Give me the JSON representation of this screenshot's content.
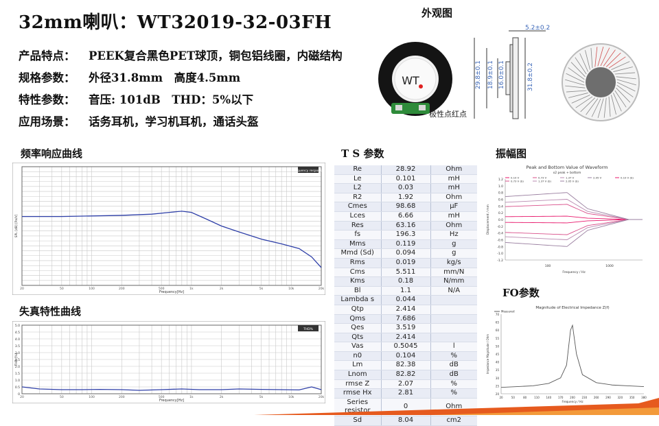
{
  "title": "32mm喇叭：WT32019-32-03FH",
  "specs": [
    {
      "label": "产品特点：",
      "value": "PEEK复合黑色PET球顶，铜包铝线圈，内磁结构"
    },
    {
      "label": "规格参数：",
      "value": "外径31.8mm　高度4.5mm"
    },
    {
      "label": "特性参数：",
      "value": "音压: 101dB　THD：5%以下"
    },
    {
      "label": "应用场景：",
      "value": "话务耳机，学习机耳机，通话头盔"
    }
  ],
  "appearance": {
    "title": "外观图",
    "logo_text": "WT",
    "polarity_note": "极性点红点",
    "dims": [
      "5.2±0.2",
      "29.8±0.1",
      "18.9±0.1",
      "16.0±0.1",
      "31.8±0.2"
    ],
    "colors": {
      "ring": "#111111",
      "pcb": "#2e8b3a",
      "dot": "#e02020"
    }
  },
  "sections": {
    "freq_title": "频率响应曲线",
    "thd_title": "失真特性曲线",
    "ts_title": "T S 参数",
    "amp_title": "振幅图",
    "fo_title": "FO参数"
  },
  "ts_params": [
    {
      "name": "Re",
      "value": "28.92",
      "unit": "Ohm"
    },
    {
      "name": "Le",
      "value": "0.101",
      "unit": "mH"
    },
    {
      "name": "L2",
      "value": "0.03",
      "unit": "mH"
    },
    {
      "name": "R2",
      "value": "1.92",
      "unit": "Ohm"
    },
    {
      "name": "Cmes",
      "value": "98.68",
      "unit": "µF"
    },
    {
      "name": "Lces",
      "value": "6.66",
      "unit": "mH"
    },
    {
      "name": "Res",
      "value": "63.16",
      "unit": "Ohm"
    },
    {
      "name": "fs",
      "value": "196.3",
      "unit": "Hz"
    },
    {
      "name": "Mms",
      "value": "0.119",
      "unit": "g"
    },
    {
      "name": "Mmd (Sd)",
      "value": "0.094",
      "unit": "g"
    },
    {
      "name": "Rms",
      "value": "0.019",
      "unit": "kg/s"
    },
    {
      "name": "Cms",
      "value": "5.511",
      "unit": "mm/N"
    },
    {
      "name": "Kms",
      "value": "0.18",
      "unit": "N/mm"
    },
    {
      "name": "Bl",
      "value": "1.1",
      "unit": "N/A"
    },
    {
      "name": "Lambda s",
      "value": "0.044",
      "unit": ""
    },
    {
      "name": "Qtp",
      "value": "2.414",
      "unit": ""
    },
    {
      "name": "Qms",
      "value": "7.686",
      "unit": ""
    },
    {
      "name": "Qes",
      "value": "3.519",
      "unit": ""
    },
    {
      "name": "Qts",
      "value": "2.414",
      "unit": ""
    },
    {
      "name": "Vas",
      "value": "0.5045",
      "unit": "l"
    },
    {
      "name": "n0",
      "value": "0.104",
      "unit": "%"
    },
    {
      "name": "Lm",
      "value": "82.38",
      "unit": "dB"
    },
    {
      "name": "Lnom",
      "value": "82.82",
      "unit": "dB"
    },
    {
      "name": "rmse Z",
      "value": "2.07",
      "unit": "%"
    },
    {
      "name": "rmse Hx",
      "value": "2.81",
      "unit": "%"
    },
    {
      "name": "Series resistor",
      "value": "0",
      "unit": "Ohm"
    },
    {
      "name": "Sd",
      "value": "8.04",
      "unit": "cm2"
    }
  ],
  "chart_data": [
    {
      "id": "frequency-response",
      "type": "line",
      "xlabel": "Frequency[Hz]",
      "ylabel": "SPL [dB] [Pa/V]",
      "x_scale": "log",
      "xlim": [
        20,
        20000
      ],
      "legend": [
        "frequency response"
      ],
      "series": [
        {
          "x": [
            20,
            50,
            100,
            200,
            400,
            600,
            800,
            1000,
            1400,
            2000,
            3000,
            5000,
            8000,
            12000,
            16000,
            20000
          ],
          "y": [
            0.58,
            0.58,
            0.585,
            0.59,
            0.6,
            0.615,
            0.625,
            0.615,
            0.56,
            0.5,
            0.45,
            0.39,
            0.35,
            0.31,
            0.24,
            0.15
          ]
        }
      ]
    },
    {
      "id": "thd",
      "type": "line",
      "xlabel": "Frequency[Hz]",
      "ylabel": "THD [%]",
      "x_scale": "log",
      "xlim": [
        20,
        20000
      ],
      "ylim": [
        0,
        5
      ],
      "yticks": [
        "0",
        "0.5",
        "1.0",
        "1.5",
        "2.0",
        "2.5",
        "3.0",
        "3.5",
        "4.0",
        "4.5",
        "5.0"
      ],
      "legend": [
        "THD%"
      ],
      "series": [
        {
          "x": [
            20,
            30,
            50,
            80,
            120,
            200,
            300,
            500,
            800,
            1200,
            2000,
            3000,
            5000,
            8000,
            12000,
            16000,
            20000
          ],
          "y": [
            0.5,
            0.35,
            0.3,
            0.3,
            0.32,
            0.3,
            0.25,
            0.3,
            0.35,
            0.3,
            0.3,
            0.35,
            0.32,
            0.3,
            0.28,
            0.5,
            0.3
          ]
        }
      ]
    },
    {
      "id": "amplitude",
      "type": "line",
      "title": "Peak and Bottom Value of Waveform",
      "subtitle": "x2 peak + bottom",
      "xlabel": "Frequency / Hz",
      "ylabel": "Displacement / mm",
      "ylim": [
        -1.2,
        1.2
      ],
      "yticks": [
        "1.2",
        "1.0",
        "0.8",
        "0.6",
        "0.4",
        "0.2",
        "0.0",
        "-0.2",
        "-0.4",
        "-0.6",
        "-0.8",
        "-1.0",
        "-1.2"
      ],
      "xticks": [
        "100",
        "1000"
      ],
      "legend": [
        "0.10 V",
        "0.73 V",
        "1.37 V",
        "2.05 V",
        "0.10 V (b)",
        "0.73 V (b)",
        "1.37 V (b)",
        "2.05 V (b)"
      ],
      "series_peak": [
        0.1,
        0.45,
        0.6,
        0.8
      ],
      "colors": [
        "#e8176b",
        "#d94f8a",
        "#b98bb0",
        "#9a7fa0"
      ]
    },
    {
      "id": "impedance",
      "type": "line",
      "title": "Magnitude of Electrical Impedance Z(f)",
      "xlabel": "Frequency / Hz",
      "ylabel": "Impedance Magnitude / Ohm",
      "ylim": [
        20,
        70
      ],
      "yticks": [
        "70",
        "65",
        "60",
        "55",
        "50",
        "45",
        "40",
        "35",
        "30",
        "25",
        "20"
      ],
      "xticks": [
        "20",
        "50",
        "80",
        "110",
        "140",
        "170",
        "200",
        "230",
        "260",
        "290",
        "320",
        "350",
        "380"
      ],
      "legend": [
        "Measured"
      ],
      "series": [
        {
          "x": [
            20,
            60,
            100,
            140,
            170,
            185,
            195,
            200,
            210,
            225,
            260,
            300,
            340,
            380
          ],
          "y": [
            24,
            24.5,
            25,
            26.5,
            30,
            38,
            60,
            63,
            45,
            32,
            27,
            25.5,
            25,
            24.5
          ]
        }
      ]
    }
  ]
}
